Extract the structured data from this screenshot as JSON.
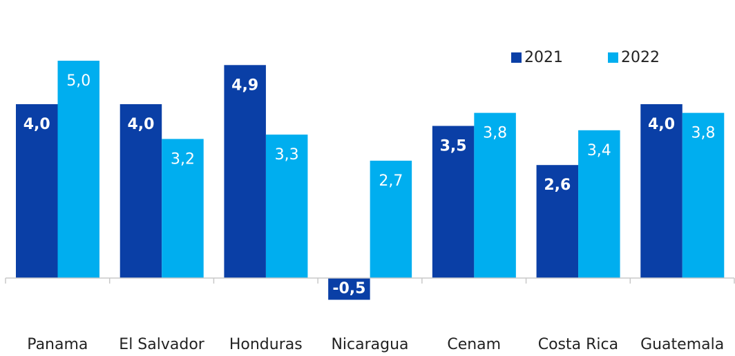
{
  "chart_data": {
    "type": "bar",
    "categories": [
      "Panama",
      "El Salvador",
      "Honduras",
      "Nicaragua",
      "Cenam",
      "Costa Rica",
      "Guatemala"
    ],
    "series": [
      {
        "name": "2021",
        "color": "#0a3fa6",
        "values": [
          4.0,
          4.0,
          4.9,
          -0.5,
          3.5,
          2.6,
          4.0
        ],
        "value_labels": [
          "4,0",
          "4,0",
          "4,9",
          "-0,5",
          "3,5",
          "2,6",
          "4,0"
        ]
      },
      {
        "name": "2022",
        "color": "#00aeef",
        "values": [
          5.0,
          3.2,
          3.3,
          2.7,
          3.8,
          3.4,
          3.8
        ],
        "value_labels": [
          "5,0",
          "3,2",
          "3,3",
          "2,7",
          "3,8",
          "3,4",
          "3,8"
        ]
      }
    ],
    "ylim": [
      -1,
      6
    ],
    "legend": "top-right"
  }
}
